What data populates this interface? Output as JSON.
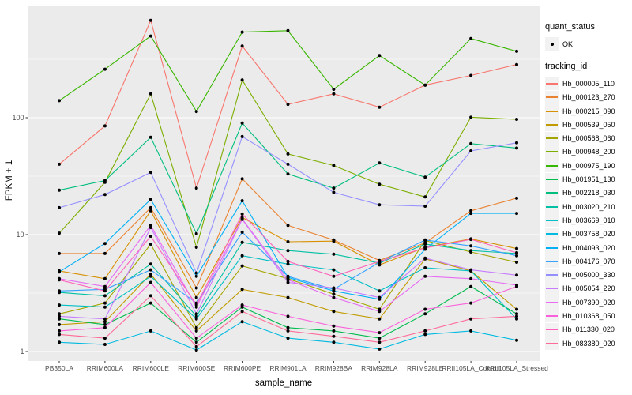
{
  "legend": {
    "quant_status_title": "quant_status",
    "ok_label": "OK",
    "ok_marker": "point-icon",
    "tracking_id_title": "tracking_id"
  },
  "chart_data": {
    "type": "line",
    "title": "",
    "xlabel": "sample_name",
    "ylabel": "FPKM + 1",
    "y_scale": "log10",
    "ylim": [
      0.85,
      900
    ],
    "y_ticks": [
      1,
      10,
      100
    ],
    "y_tick_labels": [
      "1",
      "10",
      "100"
    ],
    "y_minor_ticks": [
      3.162,
      31.62,
      316.2
    ],
    "grid": true,
    "legend_position": "right",
    "point_marker_color": "#000000",
    "colors": {
      "panel_bg": "#EBEBEB",
      "grid": "#FFFFFF",
      "tick": "#333333",
      "tick_label": "#4D4D4D",
      "legend_key_bg": "#F2F2F2"
    },
    "categories": [
      "PB350LA",
      "RRIM600LA",
      "RRIM600LE",
      "RRIM600SE",
      "RRIM600PE",
      "RRIM901LA",
      "RRIM928BA",
      "RRIM928LA",
      "RRIM928LE",
      "RRII105LA_Control",
      "RRII105LA_Stressed"
    ],
    "series": [
      {
        "name": "Hb_000005_110",
        "color": "#F8766D",
        "values": [
          40,
          85,
          680,
          25,
          410,
          130,
          160,
          123,
          190,
          230,
          285
        ]
      },
      {
        "name": "Hb_000123_270",
        "color": "#EA8331",
        "values": [
          6.9,
          6.9,
          17,
          3.5,
          30,
          12,
          9.0,
          6.0,
          8.5,
          16,
          20.5
        ]
      },
      {
        "name": "Hb_000215_090",
        "color": "#D89000",
        "values": [
          4.9,
          4.2,
          16,
          2.9,
          14,
          8.7,
          8.8,
          5.5,
          7.8,
          9.2,
          7.6
        ]
      },
      {
        "name": "Hb_000539_050",
        "color": "#C09B00",
        "values": [
          1.7,
          1.8,
          4.6,
          1.5,
          3.4,
          2.9,
          2.2,
          1.9,
          6.2,
          4.9,
          2.3
        ]
      },
      {
        "name": "Hb_000568_060",
        "color": "#A3A500",
        "values": [
          2.1,
          2.6,
          8.3,
          1.6,
          5.4,
          4.2,
          3.1,
          2.3,
          8.9,
          7.1,
          5.8
        ]
      },
      {
        "name": "Hb_000948_200",
        "color": "#7CAE00",
        "values": [
          10.3,
          28,
          160,
          7.8,
          210,
          49,
          39,
          27,
          21,
          101,
          97
        ]
      },
      {
        "name": "Hb_000975_190",
        "color": "#39B600",
        "values": [
          140,
          260,
          500,
          113,
          540,
          555,
          175,
          340,
          190,
          475,
          370
        ]
      },
      {
        "name": "Hb_001951_130",
        "color": "#00BB4E",
        "values": [
          1.9,
          1.7,
          2.6,
          1.2,
          2.4,
          1.6,
          1.5,
          1.3,
          2.1,
          3.6,
          2.1
        ]
      },
      {
        "name": "Hb_002218_030",
        "color": "#00BF7D",
        "values": [
          24,
          29,
          68,
          10.2,
          90,
          33,
          25,
          41,
          31,
          60,
          55
        ]
      },
      {
        "name": "Hb_003020_210",
        "color": "#00C1A3",
        "values": [
          3.2,
          3.0,
          5.6,
          2.0,
          8.6,
          7.3,
          6.8,
          5.7,
          8.3,
          7.3,
          6.9
        ]
      },
      {
        "name": "Hb_003669_010",
        "color": "#00BFC4",
        "values": [
          2.5,
          2.4,
          4.4,
          1.9,
          6.6,
          5.6,
          5.0,
          3.3,
          5.2,
          4.9,
          1.9
        ]
      },
      {
        "name": "Hb_003758_020",
        "color": "#00BAE0",
        "values": [
          1.2,
          1.15,
          1.5,
          1.03,
          1.8,
          1.3,
          1.2,
          1.05,
          1.4,
          1.5,
          1.25
        ]
      },
      {
        "name": "Hb_004093_020",
        "color": "#00B0F6",
        "values": [
          4.8,
          8.4,
          20,
          4.4,
          19.5,
          4.3,
          3.3,
          2.8,
          7.5,
          15.2,
          15.2
        ]
      },
      {
        "name": "Hb_004176_070",
        "color": "#35A2FF",
        "values": [
          3.3,
          3.4,
          5.0,
          2.6,
          10.5,
          4.4,
          3.4,
          5.8,
          9.0,
          8.0,
          6.6
        ]
      },
      {
        "name": "Hb_005000_330",
        "color": "#9590FF",
        "values": [
          17,
          22,
          34,
          4.7,
          69,
          40,
          23,
          18,
          17.5,
          52,
          61
        ]
      },
      {
        "name": "Hb_005054_220",
        "color": "#C77CFF",
        "values": [
          2.0,
          1.9,
          11.5,
          2.1,
          13.5,
          3.9,
          3.5,
          2.9,
          6.3,
          5.0,
          4.5
        ]
      },
      {
        "name": "Hb_007390_020",
        "color": "#E76BF3",
        "values": [
          4.2,
          3.6,
          12,
          2.4,
          13.6,
          4.1,
          2.9,
          2.2,
          4.4,
          4.2,
          3.7
        ]
      },
      {
        "name": "Hb_010368_050",
        "color": "#FA62DB",
        "values": [
          1.5,
          1.6,
          3.9,
          1.3,
          2.5,
          2.0,
          1.65,
          1.45,
          2.3,
          2.6,
          3.6
        ]
      },
      {
        "name": "Hb_011330_020",
        "color": "#FF62BC",
        "values": [
          4.1,
          3.3,
          9.7,
          2.5,
          15,
          5.9,
          4.4,
          5.9,
          7.7,
          9.1,
          7.0
        ]
      },
      {
        "name": "Hb_083380_020",
        "color": "#FF6A98",
        "values": [
          1.4,
          1.3,
          3.0,
          1.1,
          2.2,
          1.5,
          1.35,
          1.2,
          1.5,
          1.9,
          2.0
        ]
      }
    ]
  }
}
